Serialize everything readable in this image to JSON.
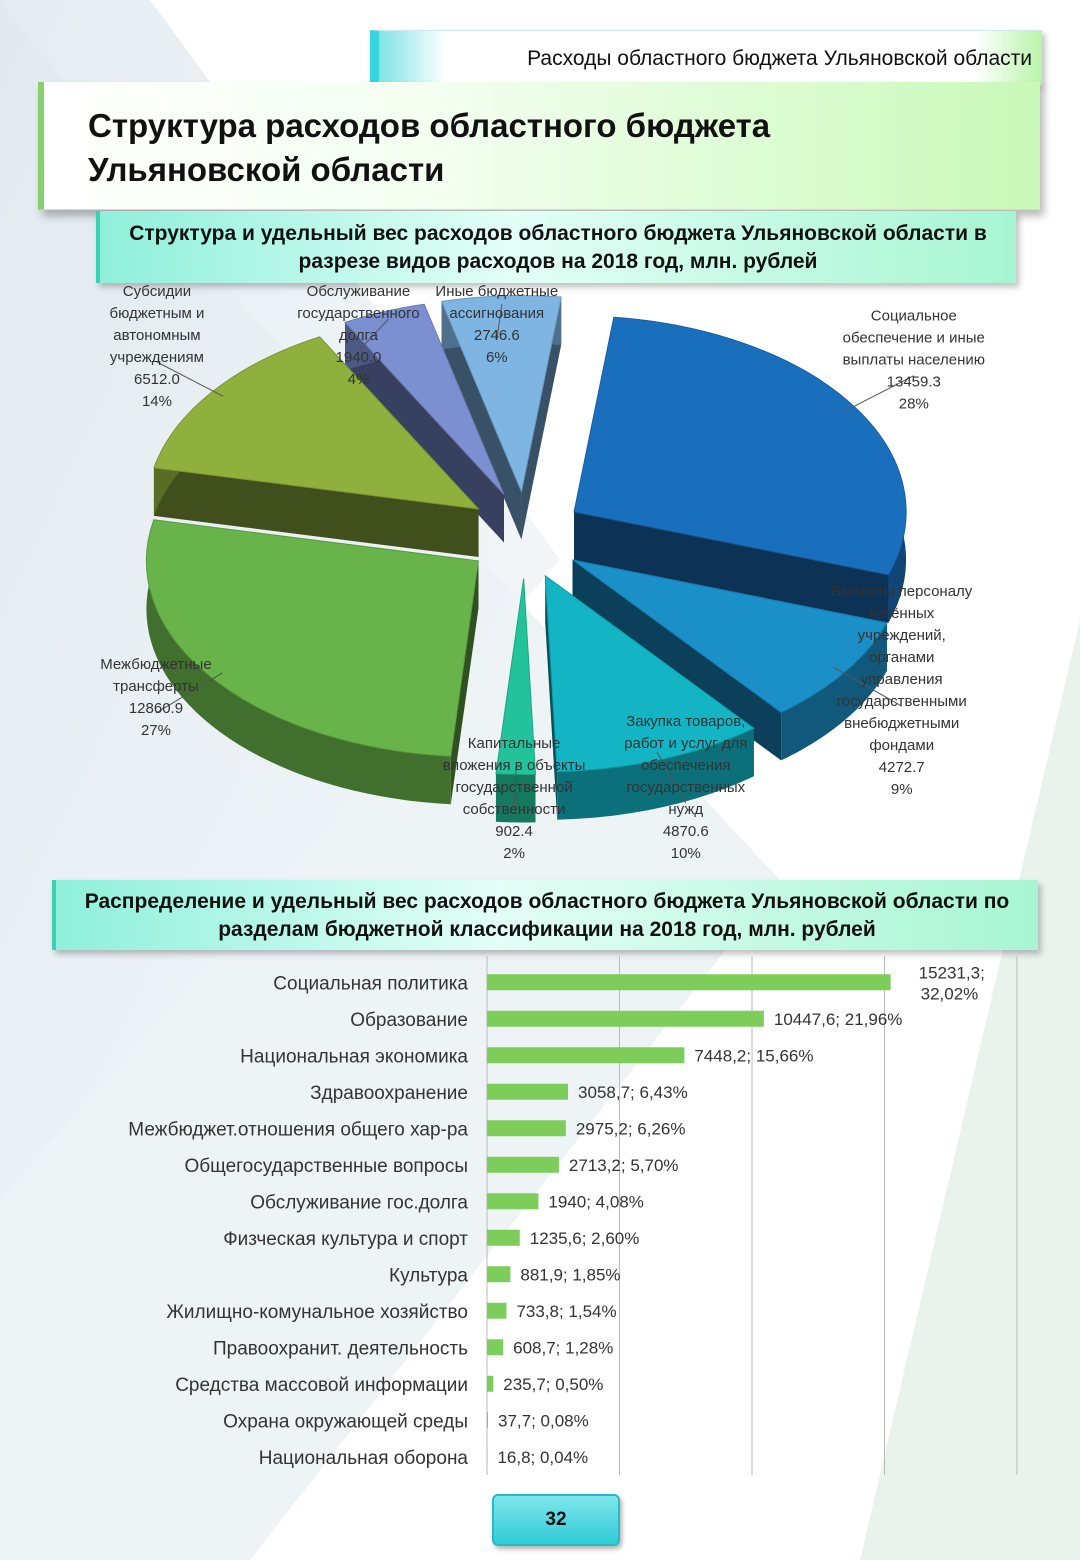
{
  "header": {
    "section_title": "Расходы областного бюджета Ульяновской области"
  },
  "page_title": "Структура расходов областного бюджета Ульяновской области",
  "colors": {
    "accent": "#39d5de",
    "bar": "#7ccd5a",
    "title_bg": "#c9f9b9"
  },
  "chart_data": [
    {
      "type": "pie",
      "title": "Структура и удельный вес расходов областного бюджета Ульяновской области в разрезе видов расходов на 2018 год, млн. рублей",
      "labels_outside": true,
      "slices": [
        {
          "label": [
            "Социальное",
            "обеспечение и иные",
            "выплаты населению"
          ],
          "value": "13459.3",
          "percent": "28%",
          "color": "#1a6fbd"
        },
        {
          "label": [
            "Выплаты персоналу",
            "казённых",
            "учреждений,",
            "органами",
            "управления",
            "государственными",
            "внебюджетными",
            "фондами"
          ],
          "value": "4272.7",
          "percent": "9%",
          "color": "#1b8fc8"
        },
        {
          "label": [
            "Закупка товаров,",
            "работ и услуг для",
            "обеспечения",
            "государственных",
            "нужд"
          ],
          "value": "4870.6",
          "percent": "10%",
          "color": "#13b5c4"
        },
        {
          "label": [
            "Капитальные",
            "вложения в объекты",
            "государственной",
            "собственности"
          ],
          "value": "902.4",
          "percent": "2%",
          "color": "#22c39b"
        },
        {
          "label": [
            "Межбюджетные",
            "трансферты"
          ],
          "value": "12860.9",
          "percent": "27%",
          "color": "#69b44a"
        },
        {
          "label": [
            "Субсидии",
            "бюджетным и",
            "автономным",
            "учреждениям"
          ],
          "value": "6512.0",
          "percent": "14%",
          "color": "#8fb03c"
        },
        {
          "label": [
            "Обслуживание",
            "государственного",
            "долга"
          ],
          "value": "1940.0",
          "percent": "4%",
          "color": "#7b8fd1"
        },
        {
          "label": [
            "Иные бюджетные",
            "ассигнования"
          ],
          "value": "2746.6",
          "percent": "6%",
          "color": "#7fb5e2"
        }
      ]
    },
    {
      "type": "bar",
      "orientation": "horizontal",
      "title": "Распределение и удельный вес расходов областного бюджета Ульяновской области по разделам бюджетной классификации на 2018 год, млн. рублей",
      "xlim": [
        0,
        20000
      ],
      "grid": true,
      "categories": [
        "Социальная политика",
        "Образование",
        "Национальная экономика",
        "Здравоохранение",
        "Межбюджет.отношения общего хар-ра",
        "Общегосударственные вопросы",
        "Обслуживание гос.долга",
        "Физческая культура и спорт",
        "Культура",
        "Жилищно-комунальное хозяйство",
        "Правоохранит. деятельность",
        "Средства массовой информации",
        "Охрана окружающей среды",
        "Национальная оборона"
      ],
      "values": [
        15231.3,
        10447.6,
        7448.2,
        3058.7,
        2975.2,
        2713.2,
        1940,
        1235.6,
        881.9,
        733.8,
        608.7,
        235.7,
        37.7,
        16.8
      ],
      "data_labels": [
        [
          "15231,3;",
          "32,02%"
        ],
        [
          "10447,6; 21,96%"
        ],
        [
          "7448,2; 15,66%"
        ],
        [
          "3058,7; 6,43%"
        ],
        [
          "2975,2; 6,26%"
        ],
        [
          "2713,2; 5,70%"
        ],
        [
          "1940; 4,08%"
        ],
        [
          "1235,6; 2,60%"
        ],
        [
          "881,9; 1,85%"
        ],
        [
          "733,8; 1,54%"
        ],
        [
          "608,7; 1,28%"
        ],
        [
          "235,7; 0,50%"
        ],
        [
          "37,7;   0,08%"
        ],
        [
          "16,8;   0,04%"
        ]
      ]
    }
  ],
  "page_number": "32"
}
